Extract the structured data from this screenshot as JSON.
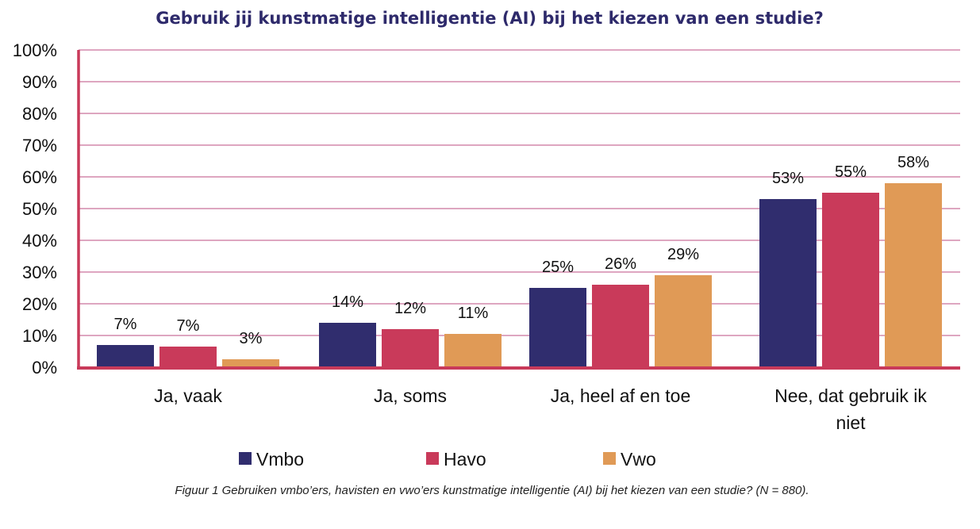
{
  "chart_data": {
    "type": "bar",
    "title": "Gebruik jij kunstmatige intelligentie (AI) bij het kiezen van een studie?",
    "xlabel": "",
    "ylabel": "",
    "ylim": [
      0,
      100
    ],
    "yticks": [
      "0%",
      "10%",
      "20%",
      "30%",
      "40%",
      "50%",
      "60%",
      "70%",
      "80%",
      "90%",
      "100%"
    ],
    "grid": true,
    "legend_position": "bottom",
    "categories": [
      [
        "Ja, vaak"
      ],
      [
        "Ja, soms"
      ],
      [
        "Ja, heel af en toe"
      ],
      [
        "Nee, dat gebruik ik",
        "niet"
      ]
    ],
    "series": [
      {
        "name": "Vmbo",
        "color": "#302d6e",
        "values": [
          7,
          14,
          25,
          53
        ],
        "labels": [
          "7%",
          "14%",
          "25%",
          "53%"
        ]
      },
      {
        "name": "Havo",
        "color": "#c93a5a",
        "values": [
          6.5,
          12,
          26,
          55
        ],
        "labels": [
          "7%",
          "12%",
          "26%",
          "55%"
        ]
      },
      {
        "name": "Vwo",
        "color": "#e09a56",
        "values": [
          2.5,
          10.5,
          29,
          58
        ],
        "labels": [
          "3%",
          "11%",
          "29%",
          "58%"
        ]
      }
    ],
    "caption": "Figuur 1 Gebruiken vmbo’ers, havisten en vwo’ers kunstmatige intelligentie (AI) bij het kiezen van een studie? (N = 880).",
    "colors": {
      "axis": "#c93a5a",
      "grid": "#c9719a",
      "title": "#2e2a6b"
    }
  }
}
